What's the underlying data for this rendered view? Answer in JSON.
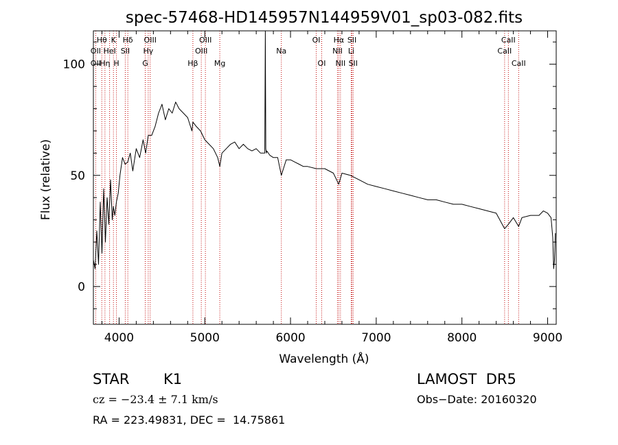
{
  "chart_data": {
    "type": "line",
    "title": "spec-57468-HD145957N144959V01_sp03-082.fits",
    "xlabel": "Wavelength (Å)",
    "ylabel": "Flux (relative)",
    "xlim": [
      3700,
      9100
    ],
    "ylim": [
      -17,
      115
    ],
    "xticks": [
      4000,
      5000,
      6000,
      7000,
      8000,
      9000
    ],
    "yticks": [
      0,
      50,
      100
    ],
    "series": [
      {
        "x": [
          3700,
          3720,
          3740,
          3760,
          3780,
          3800,
          3820,
          3840,
          3860,
          3880,
          3900,
          3920,
          3933,
          3950,
          3968,
          3990,
          4010,
          4040,
          4070,
          4101,
          4130,
          4160,
          4200,
          4240,
          4280,
          4310,
          4340,
          4380,
          4420,
          4460,
          4500,
          4540,
          4580,
          4620,
          4660,
          4700,
          4750,
          4800,
          4850,
          4861,
          4900,
          4950,
          5000,
          5050,
          5100,
          5150,
          5175,
          5200,
          5250,
          5300,
          5350,
          5400,
          5450,
          5500,
          5550,
          5600,
          5650,
          5700,
          5706,
          5712,
          5718,
          5724,
          5760,
          5800,
          5850,
          5893,
          5950,
          6000,
          6050,
          6100,
          6150,
          6200,
          6300,
          6400,
          6500,
          6563,
          6600,
          6700,
          6800,
          6900,
          7000,
          7100,
          7200,
          7300,
          7400,
          7500,
          7600,
          7700,
          7800,
          7900,
          8000,
          8100,
          8200,
          8300,
          8400,
          8498,
          8542,
          8600,
          8662,
          8700,
          8800,
          8900,
          8950,
          9000,
          9040,
          9060,
          9070,
          9080,
          9090
        ],
        "values": [
          12,
          8,
          25,
          10,
          38,
          15,
          44,
          20,
          40,
          28,
          48,
          30,
          36,
          32,
          38,
          42,
          50,
          58,
          55,
          56,
          60,
          52,
          62,
          58,
          66,
          60,
          68,
          68,
          72,
          78,
          82,
          75,
          80,
          78,
          83,
          80,
          78,
          76,
          70,
          74,
          72,
          70,
          66,
          64,
          62,
          58,
          54,
          60,
          62,
          64,
          65,
          62,
          64,
          62,
          61,
          62,
          60,
          60,
          115,
          62,
          60,
          61,
          59,
          58,
          58,
          50,
          57,
          57,
          56,
          55,
          54,
          54,
          53,
          53,
          51,
          46,
          51,
          50,
          48,
          46,
          45,
          44,
          43,
          42,
          41,
          40,
          39,
          39,
          38,
          37,
          37,
          36,
          35,
          34,
          33,
          26,
          28,
          31,
          27,
          31,
          32,
          32,
          34,
          33,
          31,
          22,
          8,
          12,
          24
        ]
      }
    ],
    "lines": [
      {
        "name": "Hθ",
        "x": 3798,
        "row": 0
      },
      {
        "name": "OII",
        "x": 3727,
        "row": 1
      },
      {
        "name": "OII",
        "x": 3727,
        "row": 2
      },
      {
        "name": "K",
        "x": 3934,
        "row": 0
      },
      {
        "name": "HeI",
        "x": 3889,
        "row": 1
      },
      {
        "name": "Hη",
        "x": 3835,
        "row": 2
      },
      {
        "name": "Hδ",
        "x": 4102,
        "row": 0
      },
      {
        "name": "SII",
        "x": 4072,
        "row": 1
      },
      {
        "name": "H",
        "x": 3969,
        "row": 2
      },
      {
        "name": "OIII",
        "x": 4363,
        "row": 0
      },
      {
        "name": "Hγ",
        "x": 4340,
        "row": 1
      },
      {
        "name": "G",
        "x": 4305,
        "row": 2
      },
      {
        "name": "OIII",
        "x": 5007,
        "row": 0
      },
      {
        "name": "OIII",
        "x": 4959,
        "row": 1
      },
      {
        "name": "Hβ",
        "x": 4861,
        "row": 2
      },
      {
        "name": "Mg",
        "x": 5175,
        "row": 2
      },
      {
        "name": "Na",
        "x": 5893,
        "row": 1
      },
      {
        "name": "OI",
        "x": 6300,
        "row": 0
      },
      {
        "name": "OI",
        "x": 6364,
        "row": 2
      },
      {
        "name": "Hα",
        "x": 6563,
        "row": 0
      },
      {
        "name": "NII",
        "x": 6548,
        "row": 1
      },
      {
        "name": "NII",
        "x": 6583,
        "row": 2
      },
      {
        "name": "SII",
        "x": 6717,
        "row": 0
      },
      {
        "name": "Li",
        "x": 6708,
        "row": 1
      },
      {
        "name": "SII",
        "x": 6731,
        "row": 2
      },
      {
        "name": "CaII",
        "x": 8542,
        "row": 0
      },
      {
        "name": "CaII",
        "x": 8498,
        "row": 1
      },
      {
        "name": "CaII",
        "x": 8662,
        "row": 2
      }
    ]
  },
  "info": {
    "object_class": "STAR",
    "subclass": "K1",
    "survey": "LAMOST  DR5",
    "redshift": "cz = −23.4 ± 7.1 km/s",
    "obs_date": "Obs−Date: 20160320",
    "coords": "RA = 223.49831, DEC =  14.75861"
  }
}
